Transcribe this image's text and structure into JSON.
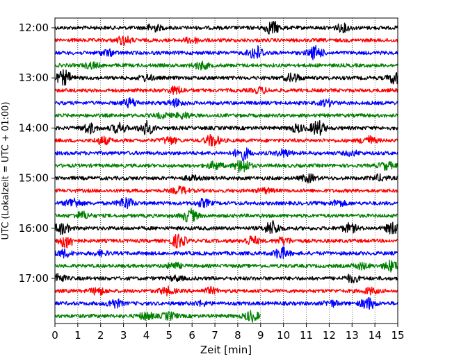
{
  "chart_data": {
    "type": "line",
    "xlabel": "Zeit  [min]",
    "ylabel": "UTC (Lokalzeit = UTC + 01:00)",
    "xlim": [
      0,
      15
    ],
    "xticks": [
      0,
      1,
      2,
      3,
      4,
      5,
      6,
      7,
      8,
      9,
      10,
      11,
      12,
      13,
      14,
      15
    ],
    "ytick_labels": [
      "12:00",
      "13:00",
      "14:00",
      "15:00",
      "16:00",
      "17:00"
    ],
    "grid": "vertical dotted",
    "trace_colors": [
      "#000000",
      "#ff0000",
      "#0000ff",
      "#008000"
    ],
    "traces": [
      {
        "start": "12:00",
        "end_min": 15,
        "events": [
          [
            4.3,
            0.5
          ],
          [
            9.5,
            0.9
          ],
          [
            12.6,
            0.5
          ]
        ]
      },
      {
        "start": "12:15",
        "end_min": 15,
        "events": [
          [
            3.0,
            0.6
          ],
          [
            6.0,
            0.4
          ]
        ]
      },
      {
        "start": "12:30",
        "end_min": 15,
        "events": [
          [
            2.3,
            0.4
          ],
          [
            8.8,
            1.0
          ],
          [
            11.4,
            0.9
          ]
        ]
      },
      {
        "start": "12:45",
        "end_min": 15,
        "events": [
          [
            1.6,
            0.4
          ],
          [
            6.4,
            0.5
          ]
        ]
      },
      {
        "start": "13:00",
        "end_min": 15,
        "events": [
          [
            0.4,
            1.0
          ],
          [
            4.0,
            0.4
          ],
          [
            10.4,
            0.6
          ],
          [
            14.9,
            0.8
          ]
        ]
      },
      {
        "start": "13:15",
        "end_min": 15,
        "events": [
          [
            5.3,
            0.5
          ],
          [
            9.0,
            0.4
          ]
        ]
      },
      {
        "start": "13:30",
        "end_min": 15,
        "events": [
          [
            3.3,
            0.6
          ],
          [
            5.3,
            0.5
          ],
          [
            11.9,
            0.4
          ]
        ]
      },
      {
        "start": "13:45",
        "end_min": 15,
        "events": [
          [
            4.7,
            0.3
          ],
          [
            5.6,
            0.4
          ]
        ]
      },
      {
        "start": "14:00",
        "end_min": 15,
        "events": [
          [
            1.5,
            0.7
          ],
          [
            2.8,
            0.7
          ],
          [
            4.0,
            0.9
          ],
          [
            10.6,
            0.5
          ],
          [
            11.5,
            1.0
          ]
        ]
      },
      {
        "start": "14:15",
        "end_min": 15,
        "events": [
          [
            2.1,
            0.5
          ],
          [
            5.0,
            0.5
          ],
          [
            6.9,
            0.8
          ],
          [
            13.7,
            0.6
          ]
        ]
      },
      {
        "start": "14:30",
        "end_min": 15,
        "events": [
          [
            8.2,
            0.9
          ],
          [
            10.0,
            0.5
          ],
          [
            13.0,
            0.3
          ]
        ]
      },
      {
        "start": "14:45",
        "end_min": 15,
        "events": [
          [
            7.0,
            0.5
          ],
          [
            8.2,
            1.0
          ],
          [
            14.5,
            0.5
          ]
        ]
      },
      {
        "start": "15:00",
        "end_min": 15,
        "events": [
          [
            6.0,
            0.3
          ],
          [
            11.1,
            0.5
          ],
          [
            14.2,
            0.4
          ]
        ]
      },
      {
        "start": "15:15",
        "end_min": 15,
        "events": [
          [
            5.5,
            0.5
          ],
          [
            9.2,
            0.3
          ]
        ]
      },
      {
        "start": "15:30",
        "end_min": 15,
        "events": [
          [
            0.8,
            0.7
          ],
          [
            3.1,
            0.8
          ],
          [
            6.5,
            0.5
          ],
          [
            12.4,
            0.4
          ]
        ]
      },
      {
        "start": "15:45",
        "end_min": 15,
        "events": [
          [
            1.2,
            0.5
          ],
          [
            5.9,
            0.9
          ]
        ]
      },
      {
        "start": "16:00",
        "end_min": 15,
        "events": [
          [
            0.3,
            0.8
          ],
          [
            9.5,
            1.0
          ],
          [
            12.9,
            0.6
          ],
          [
            14.8,
            0.8
          ]
        ]
      },
      {
        "start": "16:15",
        "end_min": 15,
        "events": [
          [
            0.5,
            1.0
          ],
          [
            5.4,
            0.9
          ],
          [
            8.6,
            0.6
          ],
          [
            10.0,
            0.5
          ]
        ]
      },
      {
        "start": "16:30",
        "end_min": 15,
        "events": [
          [
            0.4,
            0.5
          ],
          [
            2.0,
            0.3
          ],
          [
            9.9,
            0.8
          ]
        ]
      },
      {
        "start": "16:45",
        "end_min": 15,
        "events": [
          [
            5.2,
            0.4
          ],
          [
            13.4,
            0.4
          ],
          [
            14.7,
            0.7
          ]
        ]
      },
      {
        "start": "17:00",
        "end_min": 15,
        "events": [
          [
            0.1,
            0.7
          ],
          [
            5.3,
            0.3
          ],
          [
            13.0,
            0.5
          ]
        ]
      },
      {
        "start": "17:15",
        "end_min": 15,
        "events": [
          [
            1.9,
            0.5
          ],
          [
            4.9,
            0.5
          ],
          [
            6.8,
            0.4
          ],
          [
            13.8,
            0.4
          ]
        ]
      },
      {
        "start": "17:30",
        "end_min": 15,
        "events": [
          [
            2.6,
            0.6
          ],
          [
            6.4,
            0.3
          ],
          [
            12.1,
            0.4
          ],
          [
            13.7,
            0.8
          ]
        ]
      },
      {
        "start": "17:45",
        "end_min": 9,
        "events": [
          [
            4.0,
            0.5
          ],
          [
            5.0,
            0.5
          ],
          [
            8.6,
            0.7
          ]
        ]
      }
    ]
  }
}
